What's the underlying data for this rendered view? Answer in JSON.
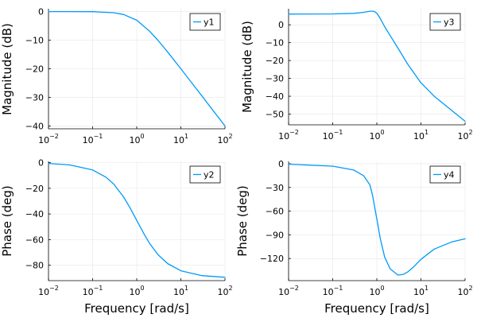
{
  "chart_data": [
    {
      "type": "line",
      "xscale": "log",
      "xlim": [
        0.01,
        100
      ],
      "ylim": [
        -41,
        1
      ],
      "xticks": [
        0.01,
        0.1,
        1,
        10,
        100
      ],
      "xtick_labels": [
        [
          "10",
          "−2"
        ],
        [
          "10",
          "−1"
        ],
        [
          "10",
          "0"
        ],
        [
          "10",
          "1"
        ],
        [
          "10",
          "2"
        ]
      ],
      "yticks": [
        -40,
        -30,
        -20,
        -10,
        0
      ],
      "ytick_labels": [
        "−40",
        "−30",
        "−20",
        "−10",
        "0"
      ],
      "ylabel": "Magnitude (dB)",
      "xlabel": "",
      "grid": true,
      "legend": "top-right",
      "color": "#009AF9",
      "series": [
        {
          "name": "y1",
          "x": [
            0.01,
            0.03,
            0.1,
            0.3,
            0.5,
            1,
            2,
            3,
            5,
            10,
            20,
            30,
            50,
            100
          ],
          "values": [
            0,
            0,
            -0.04,
            -0.4,
            -1,
            -3,
            -7,
            -10,
            -14.1,
            -20,
            -26,
            -29.5,
            -34,
            -40
          ]
        }
      ]
    },
    {
      "type": "line",
      "xscale": "log",
      "xlim": [
        0.01,
        100
      ],
      "ylim": [
        -56,
        9
      ],
      "xticks": [
        0.01,
        0.1,
        1,
        10,
        100
      ],
      "xtick_labels": [
        [
          "10",
          "−2"
        ],
        [
          "10",
          "−1"
        ],
        [
          "10",
          "0"
        ],
        [
          "10",
          "1"
        ],
        [
          "10",
          "2"
        ]
      ],
      "yticks": [
        -50,
        -40,
        -30,
        -20,
        -10,
        0
      ],
      "ytick_labels": [
        "−50",
        "−40",
        "−30",
        "−20",
        "−10",
        "0"
      ],
      "ylabel": "Magnitude (dB)",
      "xlabel": "",
      "grid": true,
      "legend": "top-right",
      "color": "#009AF9",
      "series": [
        {
          "name": "y3",
          "x": [
            0.01,
            0.1,
            0.3,
            0.5,
            0.7,
            0.85,
            1,
            1.2,
            1.5,
            2,
            3,
            5,
            10,
            20,
            50,
            100
          ],
          "values": [
            6,
            6.1,
            6.4,
            7,
            7.6,
            7.6,
            6.5,
            3.5,
            -1,
            -6,
            -13,
            -22,
            -32.5,
            -40,
            -48,
            -54
          ]
        }
      ]
    },
    {
      "type": "line",
      "xscale": "log",
      "xlim": [
        0.01,
        100
      ],
      "ylim": [
        -92,
        1
      ],
      "xticks": [
        0.01,
        0.1,
        1,
        10,
        100
      ],
      "xtick_labels": [
        [
          "10",
          "−2"
        ],
        [
          "10",
          "−1"
        ],
        [
          "10",
          "0"
        ],
        [
          "10",
          "1"
        ],
        [
          "10",
          "2"
        ]
      ],
      "yticks": [
        -80,
        -60,
        -40,
        -20,
        0
      ],
      "ytick_labels": [
        "−80",
        "−60",
        "−40",
        "−20",
        "0"
      ],
      "ylabel": "Phase (deg)",
      "xlabel": "Frequency [rad/s]",
      "grid": true,
      "legend": "top-right",
      "color": "#009AF9",
      "series": [
        {
          "name": "y2",
          "x": [
            0.01,
            0.03,
            0.1,
            0.2,
            0.3,
            0.5,
            0.7,
            1,
            1.5,
            2,
            3,
            5,
            10,
            30,
            100
          ],
          "values": [
            -0.6,
            -1.7,
            -5.7,
            -11.3,
            -16.7,
            -26.6,
            -35,
            -45,
            -56.3,
            -63.4,
            -71.6,
            -78.7,
            -84.3,
            -88.1,
            -89.4
          ]
        }
      ]
    },
    {
      "type": "line",
      "xscale": "log",
      "xlim": [
        0.01,
        100
      ],
      "ylim": [
        -148,
        3
      ],
      "xticks": [
        0.01,
        0.1,
        1,
        10,
        100
      ],
      "xtick_labels": [
        [
          "10",
          "−2"
        ],
        [
          "10",
          "−1"
        ],
        [
          "10",
          "0"
        ],
        [
          "10",
          "1"
        ],
        [
          "10",
          "2"
        ]
      ],
      "yticks": [
        -120,
        -90,
        -60,
        -30,
        0
      ],
      "ytick_labels": [
        "−120",
        "−90",
        "−60",
        "−30",
        "0"
      ],
      "ylabel": "Phase (deg)",
      "xlabel": "Frequency [rad/s]",
      "grid": true,
      "legend": "top-right",
      "color": "#009AF9",
      "series": [
        {
          "name": "y4",
          "x": [
            0.01,
            0.1,
            0.3,
            0.5,
            0.7,
            0.8,
            1,
            1.2,
            1.5,
            2,
            3,
            4,
            5,
            7,
            10,
            20,
            50,
            100
          ],
          "values": [
            -0.5,
            -3,
            -8,
            -15,
            -27,
            -40,
            -70,
            -95,
            -118,
            -133,
            -141,
            -140,
            -137,
            -130,
            -121,
            -108,
            -99,
            -95
          ]
        }
      ]
    }
  ]
}
